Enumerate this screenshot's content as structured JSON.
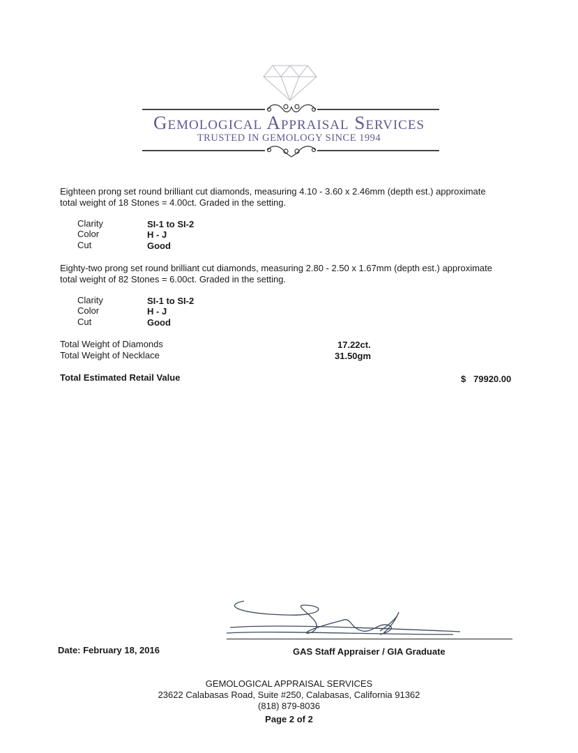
{
  "header": {
    "company_name": "Gemological Appraisal Services",
    "tagline": "TRUSTED IN GEMOLOGY SINCE 1994",
    "logo_icon": "diamond-icon",
    "brand_color": "#5d5b8e"
  },
  "groups": [
    {
      "description_line1": "Eighteen prong set round brilliant cut diamonds, measuring 4.10 - 3.60 x 2.46mm (depth est.) approximate",
      "description_line2": "total weight of 18 Stones = 4.00ct. Graded in the setting.",
      "grades": [
        {
          "label": "Clarity",
          "value": "SI-1 to SI-2"
        },
        {
          "label": "Color",
          "value": "H - J"
        },
        {
          "label": "Cut",
          "value": "Good"
        }
      ]
    },
    {
      "description_line1": "Eighty-two prong set round brilliant cut diamonds, measuring 2.80 - 2.50 x 1.67mm (depth est.) approximate",
      "description_line2": "total weight of 82 Stones = 6.00ct. Graded in the setting.",
      "grades": [
        {
          "label": "Clarity",
          "value": "SI-1 to SI-2"
        },
        {
          "label": "Color",
          "value": "H - J"
        },
        {
          "label": "Cut",
          "value": "Good"
        }
      ]
    }
  ],
  "totals": {
    "diamonds_label": "Total Weight of Diamonds",
    "diamonds_value": "17.22ct.",
    "necklace_label": "Total Weight of Necklace",
    "necklace_value": "31.50gm",
    "retail_label": "Total Estimated Retail Value",
    "retail_currency": "$",
    "retail_value": "79920.00"
  },
  "signature": {
    "date": "Date: February 18, 2016",
    "title": "GAS Staff Appraiser / GIA Graduate"
  },
  "footer": {
    "company": "GEMOLOGICAL APPRAISAL SERVICES",
    "address": "23622 Calabasas Road, Suite #250, Calabasas, California 91362",
    "phone": "(818) 879-8036",
    "page": "Page 2 of 2"
  }
}
